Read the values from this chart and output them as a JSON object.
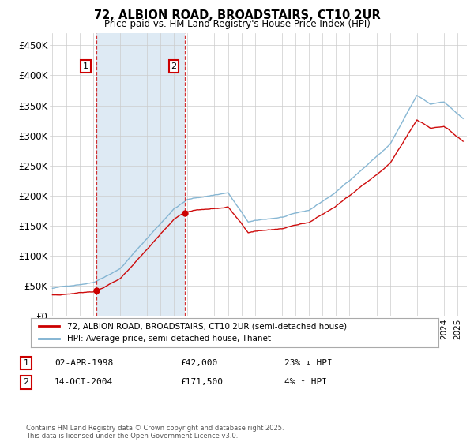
{
  "title": "72, ALBION ROAD, BROADSTAIRS, CT10 2UR",
  "subtitle": "Price paid vs. HM Land Registry's House Price Index (HPI)",
  "ylabel_ticks": [
    "£0",
    "£50K",
    "£100K",
    "£150K",
    "£200K",
    "£250K",
    "£300K",
    "£350K",
    "£400K",
    "£450K"
  ],
  "ytick_values": [
    0,
    50000,
    100000,
    150000,
    200000,
    250000,
    300000,
    350000,
    400000,
    450000
  ],
  "ylim": [
    0,
    470000
  ],
  "xlim_start": 1994.8,
  "xlim_end": 2025.7,
  "red_line_color": "#cc0000",
  "blue_line_color": "#7aafcf",
  "shade_color": "#deeaf4",
  "marker1_year": 1998.25,
  "marker1_price": 42000,
  "marker2_year": 2004.79,
  "marker2_price": 171500,
  "legend_label_red": "72, ALBION ROAD, BROADSTAIRS, CT10 2UR (semi-detached house)",
  "legend_label_blue": "HPI: Average price, semi-detached house, Thanet",
  "note1_label": "1",
  "note1_date": "02-APR-1998",
  "note1_price": "£42,000",
  "note1_pct": "23% ↓ HPI",
  "note2_label": "2",
  "note2_date": "14-OCT-2004",
  "note2_price": "£171,500",
  "note2_pct": "4% ↑ HPI",
  "footer": "Contains HM Land Registry data © Crown copyright and database right 2025.\nThis data is licensed under the Open Government Licence v3.0.",
  "background_color": "#ffffff",
  "grid_color": "#cccccc"
}
